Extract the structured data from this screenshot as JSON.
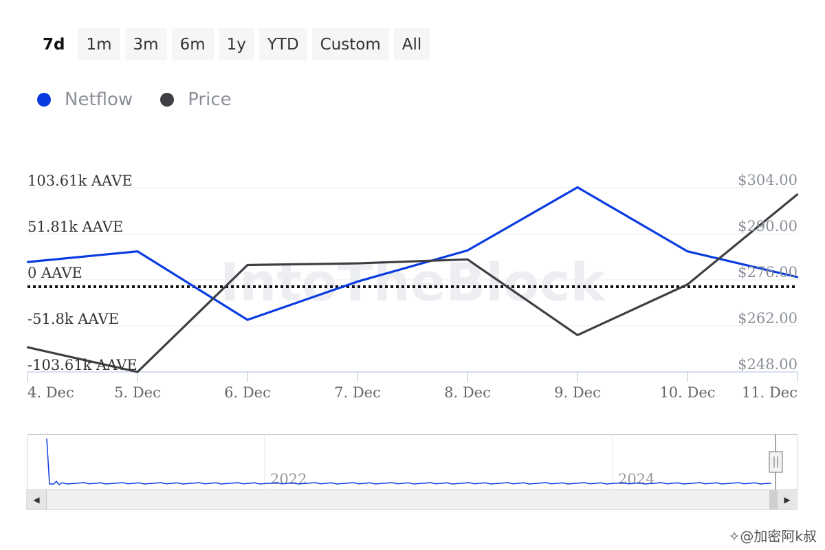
{
  "range_buttons": [
    {
      "label": "7d",
      "active": true
    },
    {
      "label": "1m",
      "active": false
    },
    {
      "label": "3m",
      "active": false
    },
    {
      "label": "6m",
      "active": false
    },
    {
      "label": "1y",
      "active": false
    },
    {
      "label": "YTD",
      "active": false
    },
    {
      "label": "Custom",
      "active": false
    },
    {
      "label": "All",
      "active": false
    }
  ],
  "legend": [
    {
      "label": "Netflow",
      "color": "#0a3be0"
    },
    {
      "label": "Price",
      "color": "#3d3f44"
    }
  ],
  "watermark_text": "IntoTheBlock",
  "footer_text": "✧@加密阿k叔",
  "chart_data": {
    "type": "line",
    "title": "",
    "x": [
      "4. Dec",
      "5. Dec",
      "6. Dec",
      "7. Dec",
      "8. Dec",
      "9. Dec",
      "10. Dec",
      "11. Dec"
    ],
    "series": [
      {
        "name": "Netflow",
        "axis": "left",
        "color": "#0a3be0",
        "values": [
          20000,
          32000,
          -45000,
          -2000,
          33000,
          104000,
          32000,
          3000
        ]
      },
      {
        "name": "Price",
        "axis": "right",
        "color": "#3d3f44",
        "values": [
          255.5,
          248.0,
          280.5,
          281.0,
          282.2,
          259.2,
          274.6,
          302.0
        ]
      }
    ],
    "y_left": {
      "ticks": [
        "103.61k AAVE",
        "51.81k AAVE",
        "0 AAVE",
        "-51.8k AAVE",
        "-103.61k AAVE"
      ],
      "range": [
        -103610,
        103610
      ]
    },
    "y_right": {
      "ticks": [
        "$304.00",
        "$290.00",
        "$276.00",
        "$262.00",
        "$248.00"
      ],
      "range": [
        248,
        304
      ]
    },
    "zero_line": "dotted",
    "grid": true,
    "legend_position": "top-left",
    "navigator": {
      "labels": [
        "2022",
        "2024"
      ]
    }
  }
}
